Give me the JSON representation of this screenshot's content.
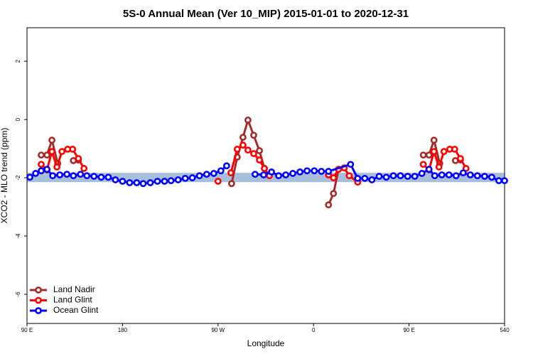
{
  "chart_data": {
    "type": "line",
    "title": "5S-0 Annual Mean (Ver 10_MIP)   2015-01-01 to 2020-12-31",
    "xlabel": "Longitude",
    "ylabel": "XCO2 - MLO trend (ppm)",
    "xlim": [
      90,
      540
    ],
    "ylim": [
      -7,
      3.15
    ],
    "xticks": [
      {
        "value": 90,
        "label": "90 E"
      },
      180,
      {
        "value": 270,
        "label": "90 W"
      },
      {
        "value": 360,
        "label": "0"
      },
      {
        "value": 450,
        "label": "90 E"
      },
      540
    ],
    "yticks": [
      -6,
      -4,
      -2,
      0,
      2
    ],
    "band_ylim": [
      -2.15,
      -1.83
    ],
    "band_color": "#a8bfdc",
    "legend": "bottom-left",
    "series": [
      {
        "name": "Land Nadir",
        "color": "#a52a2a",
        "x": [
          103.4,
          108.8,
          113.5,
          118.9,
          null,
          133.7,
          138.4,
          null,
          282.8,
          288.1,
          293.5,
          298.2,
          303.6,
          309.0,
          313.7,
          null,
          374.1,
          378.8,
          383.5,
          null,
          463.4,
          468.8,
          473.5,
          478.9,
          null,
          493.7,
          498.4
        ],
        "values": [
          -1.22,
          -1.22,
          -0.71,
          -1.51,
          null,
          -1.41,
          -1.39,
          null,
          -2.2,
          -1.29,
          -0.61,
          -0.02,
          -0.54,
          -1.07,
          -1.68,
          null,
          -2.93,
          -2.54,
          -1.71,
          null,
          -1.22,
          -1.22,
          -0.71,
          -1.51,
          null,
          -1.41,
          -1.39
        ]
      },
      {
        "name": "Land Glint",
        "color": "#ff0000",
        "x": [
          103.4,
          108.8,
          113.5,
          118.2,
          122.9,
          128.3,
          133.0,
          138.4,
          143.7,
          null,
          270.0,
          null,
          282.1,
          288.1,
          293.5,
          298.2,
          303.6,
          309.0,
          313.7,
          318.4,
          null,
          374.1,
          378.8,
          383.5,
          388.9,
          393.6,
          401.6,
          null,
          463.4,
          468.8,
          473.5,
          478.2,
          482.9,
          488.3,
          493.0,
          498.4,
          503.7
        ],
        "values": [
          -1.54,
          -1.73,
          -1.1,
          -1.63,
          -1.1,
          -1.02,
          -1.02,
          -1.34,
          -1.68,
          null,
          -2.12,
          null,
          -1.83,
          -1.02,
          -0.88,
          -1.05,
          -1.17,
          -1.39,
          -1.68,
          -1.93,
          null,
          -1.9,
          -2.0,
          -1.71,
          -1.66,
          -1.93,
          -2.15,
          null,
          -1.54,
          -1.73,
          -1.1,
          -1.63,
          -1.1,
          -1.02,
          -1.02,
          -1.34,
          -1.68
        ]
      },
      {
        "name": "Ocean Glint",
        "color": "#0000ff",
        "x": [
          92.7,
          98.1,
          103.4,
          108.8,
          114.2,
          120.9,
          127.6,
          133.7,
          140.4,
          146.4,
          153.1,
          159.9,
          166.6,
          173.3,
          180.0,
          186.7,
          193.4,
          199.5,
          206.2,
          212.9,
          219.6,
          225.7,
          232.4,
          239.1,
          245.8,
          252.5,
          259.3,
          266.0,
          272.7,
          278.1,
          null,
          304.9,
          313.0,
          320.4,
          327.1,
          333.8,
          340.5,
          347.2,
          353.9,
          360.7,
          367.4,
          374.1,
          394.9,
          401.6,
          408.3,
          415.0,
          421.8,
          428.5,
          435.2,
          441.9,
          448.7,
          455.4,
          462.1,
          468.8,
          474.2,
          480.9,
          487.6,
          494.3,
          501.0,
          507.7,
          514.4,
          521.2,
          527.9,
          534.6,
          540.0
        ],
        "values": [
          -1.98,
          -1.85,
          -1.76,
          -1.71,
          -1.93,
          -1.9,
          -1.88,
          -1.93,
          -1.88,
          -1.93,
          -1.95,
          -1.98,
          -1.98,
          -2.07,
          -2.12,
          -2.17,
          -2.17,
          -2.2,
          -2.17,
          -2.12,
          -2.12,
          -2.1,
          -2.07,
          -2.02,
          -2.0,
          -1.93,
          -1.88,
          -1.85,
          -1.76,
          -1.59,
          null,
          -1.88,
          -1.9,
          -1.8,
          -1.93,
          -1.9,
          -1.85,
          -1.8,
          -1.76,
          -1.76,
          -1.78,
          -1.78,
          -1.54,
          -2.02,
          -2.02,
          -2.07,
          -1.95,
          -1.98,
          -1.93,
          -1.93,
          -1.95,
          -1.95,
          -1.85,
          -1.71,
          -1.93,
          -1.9,
          -1.9,
          -1.93,
          -1.83,
          -1.9,
          -1.93,
          -1.95,
          -1.98,
          -2.1,
          -2.1
        ]
      }
    ]
  }
}
